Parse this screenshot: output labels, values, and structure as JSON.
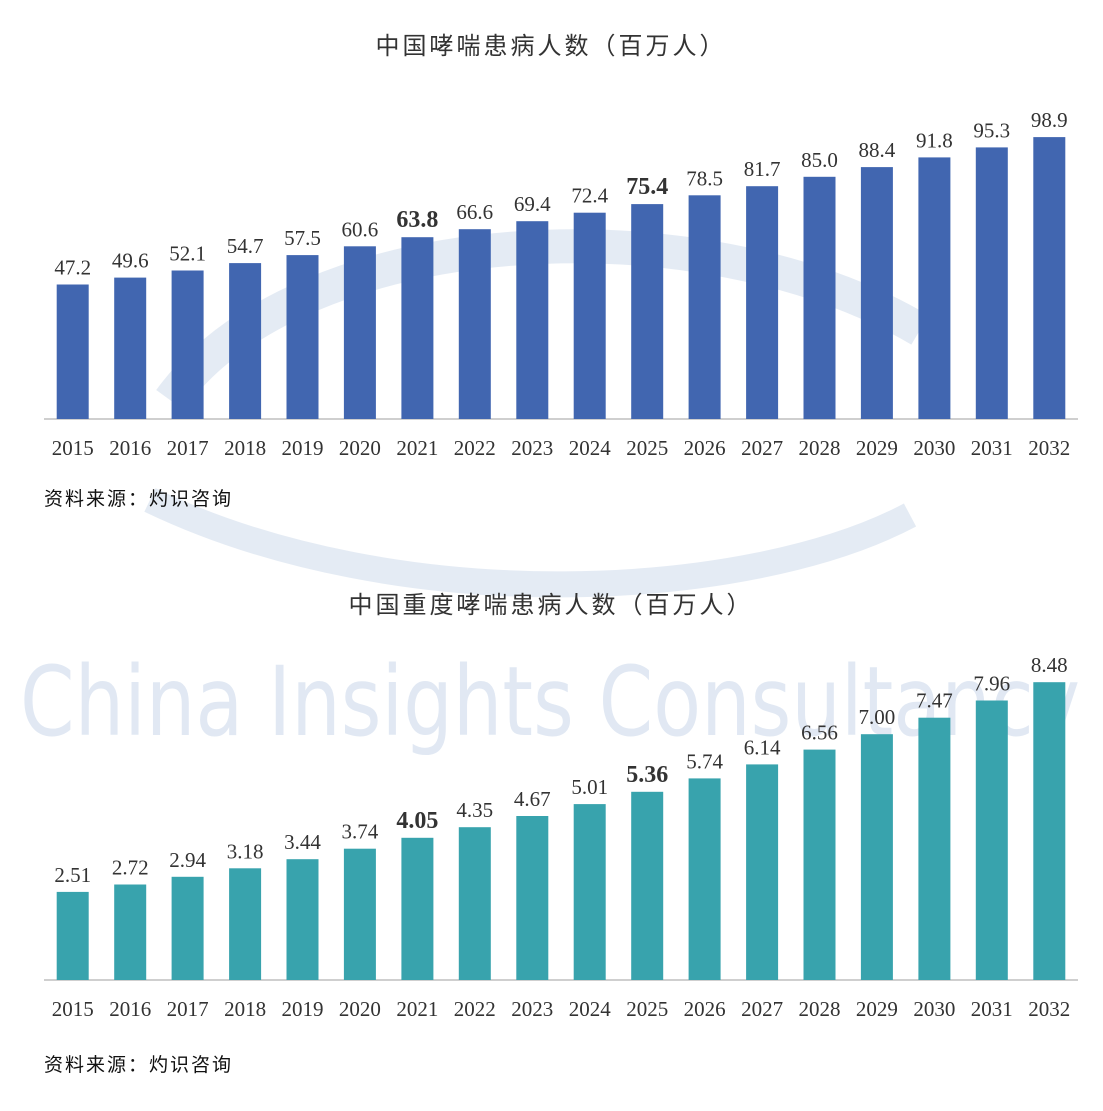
{
  "watermark": {
    "text": "China Insights Consultancy",
    "color": "#c9d7ea"
  },
  "charts": [
    {
      "title": "中国哮喘患病人数（百万人）",
      "source": "资料来源：灼识咨询"
    },
    {
      "title": "中国重度哮喘患病人数（百万人）",
      "source": "资料来源：灼识咨询"
    }
  ],
  "chart_data": [
    {
      "type": "bar",
      "title": "中国哮喘患病人数（百万人）",
      "categories": [
        "2015",
        "2016",
        "2017",
        "2018",
        "2019",
        "2020",
        "2021",
        "2022",
        "2023",
        "2024",
        "2025",
        "2026",
        "2027",
        "2028",
        "2029",
        "2030",
        "2031",
        "2032"
      ],
      "values": [
        47.2,
        49.6,
        52.1,
        54.7,
        57.5,
        60.6,
        63.8,
        66.6,
        69.4,
        72.4,
        75.4,
        78.5,
        81.7,
        85.0,
        88.4,
        91.8,
        95.3,
        98.9
      ],
      "value_labels": [
        "47.2",
        "49.6",
        "52.1",
        "54.7",
        "57.5",
        "60.6",
        "63.8",
        "66.6",
        "69.4",
        "72.4",
        "75.4",
        "78.5",
        "81.7",
        "85.0",
        "88.4",
        "91.8",
        "95.3",
        "98.9"
      ],
      "highlighted_categories": [
        "2021",
        "2025"
      ],
      "bar_color": "#4166b0",
      "highlight_label_color": "#1f5fb0",
      "ylim": [
        0,
        100
      ],
      "grid": false,
      "source": "资料来源：灼识咨询"
    },
    {
      "type": "bar",
      "title": "中国重度哮喘患病人数（百万人）",
      "categories": [
        "2015",
        "2016",
        "2017",
        "2018",
        "2019",
        "2020",
        "2021",
        "2022",
        "2023",
        "2024",
        "2025",
        "2026",
        "2027",
        "2028",
        "2029",
        "2030",
        "2031",
        "2032"
      ],
      "values": [
        2.51,
        2.72,
        2.94,
        3.18,
        3.44,
        3.74,
        4.05,
        4.35,
        4.67,
        5.01,
        5.36,
        5.74,
        6.14,
        6.56,
        7.0,
        7.47,
        7.96,
        8.48
      ],
      "value_labels": [
        "2.51",
        "2.72",
        "2.94",
        "3.18",
        "3.44",
        "3.74",
        "4.05",
        "4.35",
        "4.67",
        "5.01",
        "5.36",
        "5.74",
        "6.14",
        "6.56",
        "7.00",
        "7.47",
        "7.96",
        "8.48"
      ],
      "highlighted_categories": [
        "2021",
        "2025"
      ],
      "bar_color": "#38a3ad",
      "highlight_label_color": "#1f7a88",
      "ylim": [
        0,
        8.6
      ],
      "grid": false,
      "source": "资料来源：灼识咨询"
    }
  ]
}
